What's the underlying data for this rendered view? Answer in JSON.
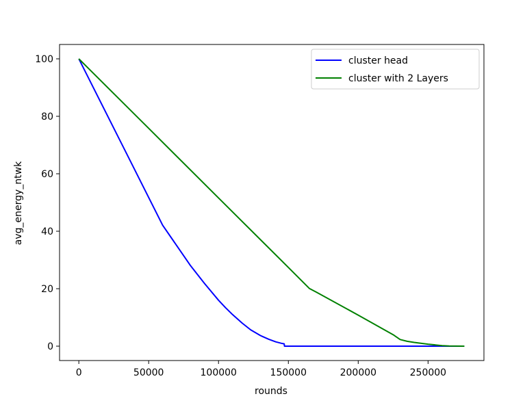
{
  "chart_data": {
    "type": "line",
    "xlabel": "rounds",
    "ylabel": "avg_energy_ntwk",
    "xlim": [
      -13800,
      290000
    ],
    "ylim": [
      -5,
      105
    ],
    "xticks": [
      0,
      50000,
      100000,
      150000,
      200000,
      250000
    ],
    "xtick_labels": [
      "0",
      "50000",
      "100000",
      "150000",
      "200000",
      "250000"
    ],
    "yticks": [
      0,
      20,
      40,
      60,
      80,
      100
    ],
    "ytick_labels": [
      "0",
      "20",
      "40",
      "60",
      "80",
      "100"
    ],
    "grid": false,
    "legend_position": "top-right",
    "series": [
      {
        "name": "cluster head",
        "color": "#0000ff",
        "x": [
          0,
          20000,
          40000,
          60000,
          80000,
          90000,
          100000,
          105000,
          110000,
          117000,
          123000,
          130000,
          136000,
          141000,
          145000,
          147000,
          147200,
          150000,
          200000,
          250000,
          276000
        ],
        "y": [
          100,
          80.7,
          61.4,
          42.1,
          28,
          21.8,
          16,
          13.4,
          11,
          8,
          5.7,
          3.7,
          2.4,
          1.5,
          1,
          0.8,
          0,
          0,
          0,
          0,
          0
        ]
      },
      {
        "name": "cluster with 2 Layers",
        "color": "#008000",
        "x": [
          0,
          50000,
          100000,
          150000,
          165000,
          170000,
          200000,
          225000,
          230000,
          235000,
          240000,
          250000,
          260000,
          265000,
          270000,
          276000
        ],
        "y": [
          100,
          75.8,
          51.6,
          27.4,
          20.1,
          18.8,
          10.8,
          4,
          2.3,
          1.7,
          1.3,
          0.7,
          0.2,
          0.05,
          0.02,
          0
        ]
      }
    ]
  }
}
